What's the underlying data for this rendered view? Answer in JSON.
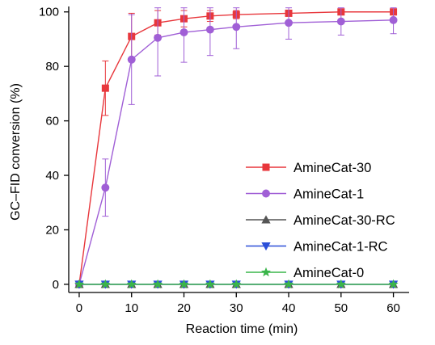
{
  "chart_data": {
    "type": "line",
    "title": "",
    "xlabel": "Reaction time (min)",
    "ylabel": "GC–FID conversion (%)",
    "xlim": [
      -2,
      63
    ],
    "ylim": [
      -3,
      102
    ],
    "xticks": [
      0,
      10,
      20,
      30,
      40,
      50,
      60
    ],
    "yticks": [
      0,
      20,
      40,
      60,
      80,
      100
    ],
    "grid": false,
    "legend_position": "center-right",
    "series": [
      {
        "name": "AmineCat-30",
        "color": "#e8373c",
        "marker": "square",
        "x": [
          0,
          5,
          10,
          15,
          20,
          25,
          30,
          40,
          50,
          60
        ],
        "y": [
          0,
          72,
          91,
          96,
          97.5,
          98.5,
          99,
          99.5,
          100,
          100
        ],
        "err": [
          0,
          10,
          8.5,
          4.5,
          3,
          2,
          1.5,
          1,
          0.5,
          0.5
        ]
      },
      {
        "name": "AmineCat-1",
        "color": "#a05fd6",
        "marker": "circle",
        "x": [
          0,
          5,
          10,
          15,
          20,
          25,
          30,
          40,
          50,
          60
        ],
        "y": [
          0,
          35.5,
          82.5,
          90.5,
          92.5,
          93.5,
          94.5,
          96,
          96.5,
          97
        ],
        "err": [
          0,
          10.5,
          16.5,
          14,
          11,
          9.5,
          8,
          6,
          5,
          5
        ]
      },
      {
        "name": "AmineCat-30-RC",
        "color": "#555555",
        "marker": "triangle-up",
        "x": [
          0,
          5,
          10,
          15,
          20,
          25,
          30,
          40,
          50,
          60
        ],
        "y": [
          0,
          0,
          0,
          0,
          0,
          0,
          0,
          0,
          0,
          0
        ]
      },
      {
        "name": "AmineCat-1-RC",
        "color": "#2b4fd8",
        "marker": "triangle-down",
        "x": [
          0,
          5,
          10,
          15,
          20,
          25,
          30,
          40,
          50,
          60
        ],
        "y": [
          0,
          0,
          0,
          0,
          0,
          0,
          0,
          0,
          0,
          0
        ]
      },
      {
        "name": "AmineCat-0",
        "color": "#3ab54a",
        "marker": "star",
        "x": [
          0,
          5,
          10,
          15,
          20,
          25,
          30,
          40,
          50,
          60
        ],
        "y": [
          0,
          0,
          0,
          0,
          0,
          0,
          0,
          0,
          0,
          0
        ]
      }
    ]
  }
}
